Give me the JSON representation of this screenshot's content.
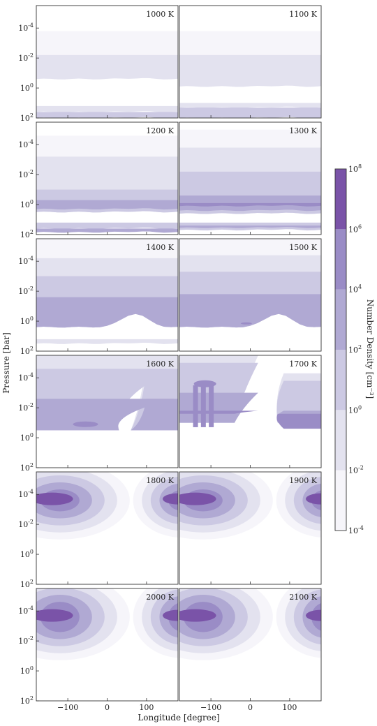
{
  "figure": {
    "xlabel": "Longitude [degree]",
    "ylabel": "Pressure [bar]",
    "x_ticks": [
      -100,
      0,
      100
    ],
    "x_range": [
      -180,
      180
    ],
    "y_range_log10": [
      -5.5,
      2
    ],
    "y_ticks": [
      {
        "exp": "-4",
        "value": 0.0001
      },
      {
        "exp": "-2",
        "value": 0.01
      },
      {
        "exp": "0",
        "value": 1
      },
      {
        "exp": "2",
        "value": 100
      }
    ]
  },
  "colorbar": {
    "label": "Number Density [cm⁻³]",
    "levels": [
      {
        "exp": "-4",
        "color": "#f6f5fa"
      },
      {
        "exp": "-2",
        "color": "#e3e2ef"
      },
      {
        "exp": "0",
        "color": "#ccc9e3"
      },
      {
        "exp": "2",
        "color": "#b0a9d3"
      },
      {
        "exp": "4",
        "color": "#9a8cc6"
      },
      {
        "exp": "6",
        "color": "#7a53a8"
      },
      {
        "exp": "8",
        "color": "#7a53a8"
      }
    ],
    "band_colors": [
      "#f6f5fa",
      "#e3e2ef",
      "#ccc9e3",
      "#b0a9d3",
      "#9a8cc6",
      "#7a53a8"
    ]
  },
  "chart_data": {
    "type": "heatmap",
    "description_note": "Filled contour maps of number density vs longitude and pressure for 12 temperatures",
    "panels": [
      {
        "label": "1000 K",
        "regime": "cool",
        "bands": [
          {
            "top": -3.8,
            "bot": -0.6,
            "level": 0
          },
          {
            "top": -2.2,
            "bot": -0.6,
            "level": 1
          },
          {
            "top": 1.2,
            "bot": 1.6,
            "level": 1
          },
          {
            "top": 1.6,
            "bot": 2,
            "level": 2
          }
        ]
      },
      {
        "label": "1100 K",
        "regime": "cool",
        "bands": [
          {
            "top": -3.8,
            "bot": -0.1,
            "level": 0
          },
          {
            "top": -2.2,
            "bot": -0.1,
            "level": 1
          },
          {
            "top": 1.0,
            "bot": 1.3,
            "level": 1
          },
          {
            "top": 1.3,
            "bot": 2,
            "level": 2
          }
        ]
      },
      {
        "label": "1200 K",
        "regime": "cool",
        "bands": [
          {
            "top": -4.6,
            "bot": 0.5,
            "level": 0
          },
          {
            "top": -3.2,
            "bot": 0.5,
            "level": 1
          },
          {
            "top": -1.0,
            "bot": 0.5,
            "level": 2
          },
          {
            "top": -0.3,
            "bot": 0.3,
            "level": 3
          },
          {
            "top": 1.2,
            "bot": 1.6,
            "level": 2
          },
          {
            "top": 1.6,
            "bot": 1.85,
            "level": 3
          }
        ]
      },
      {
        "label": "1300 K",
        "regime": "cool",
        "bands": [
          {
            "top": -5,
            "bot": 0.6,
            "level": 0
          },
          {
            "top": -3.8,
            "bot": 0.6,
            "level": 1
          },
          {
            "top": -2.2,
            "bot": 0.6,
            "level": 2
          },
          {
            "top": -0.6,
            "bot": 0.4,
            "level": 3
          },
          {
            "top": -0.1,
            "bot": 0.1,
            "level": 4
          },
          {
            "top": 1.2,
            "bot": 1.7,
            "level": 2
          },
          {
            "top": 1.4,
            "bot": 1.55,
            "level": 3
          }
        ]
      },
      {
        "label": "1400 K",
        "regime": "warm",
        "bands": [
          {
            "top": -5.5,
            "bot": 0.4,
            "level": 0
          },
          {
            "top": -4.2,
            "bot": 0.4,
            "level": 1
          },
          {
            "top": -3.0,
            "bot": 0.4,
            "level": 2
          },
          {
            "top": -1.6,
            "bot": 0.4,
            "level": 3
          },
          {
            "top": 1.2,
            "bot": 1.5,
            "level": 1
          }
        ]
      },
      {
        "label": "1500 K",
        "regime": "warm",
        "bands": [
          {
            "top": -5.5,
            "bot": 0.4,
            "level": 0
          },
          {
            "top": -4.4,
            "bot": 0.4,
            "level": 1
          },
          {
            "top": -3.3,
            "bot": 0.4,
            "level": 2
          },
          {
            "top": -1.8,
            "bot": 0.4,
            "level": 3
          }
        ]
      },
      {
        "label": "1600 K",
        "regime": "split",
        "bands": [
          {
            "top": -5.5,
            "bot": -0.5,
            "level": 1
          },
          {
            "top": -4.6,
            "bot": -0.5,
            "level": 2
          },
          {
            "top": -2.6,
            "bot": -0.5,
            "level": 3
          }
        ]
      },
      {
        "label": "1700 K",
        "regime": "split",
        "bands": [
          {
            "top": -5.5,
            "bot": -1.0,
            "level": 1
          },
          {
            "top": -5.0,
            "bot": -1.0,
            "level": 2
          },
          {
            "top": -3.0,
            "bot": -1.0,
            "level": 3
          },
          {
            "top": -1.8,
            "bot": -1.6,
            "level": 4
          }
        ]
      },
      {
        "label": "1800 K",
        "regime": "hot"
      },
      {
        "label": "1900 K",
        "regime": "hot"
      },
      {
        "label": "2000 K",
        "regime": "hot"
      },
      {
        "label": "2100 K",
        "regime": "hot"
      }
    ]
  }
}
